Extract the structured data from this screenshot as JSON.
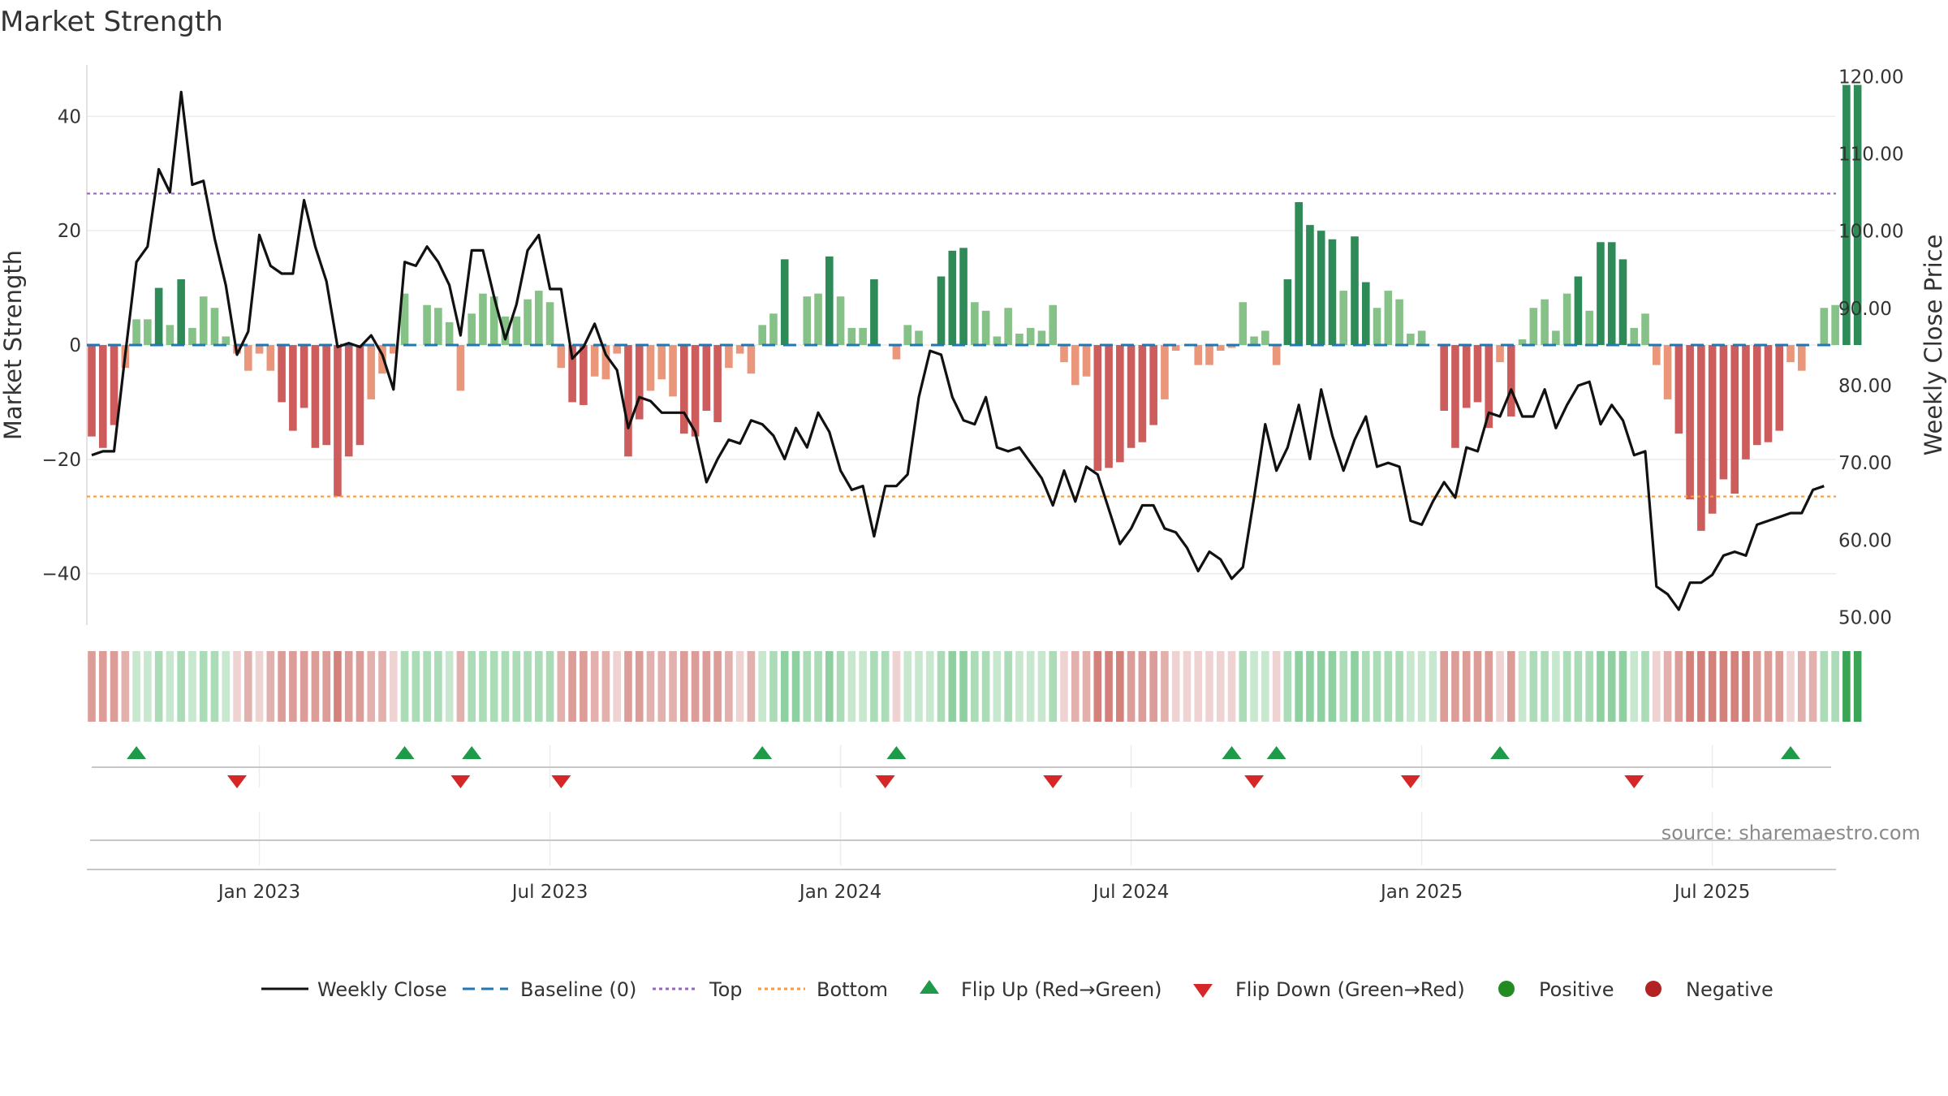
{
  "chart_data": {
    "type": "bar",
    "title": "Market Strength",
    "ylabel_left": "Market Strength",
    "ylabel_right": "Weekly Close Price",
    "ylim_left": [
      -49,
      49
    ],
    "ylim_right": [
      49,
      121.5
    ],
    "left_ticks": [
      {
        "value": 40,
        "label": "40"
      },
      {
        "value": 20,
        "label": "20"
      },
      {
        "value": 0,
        "label": "0"
      },
      {
        "value": -20,
        "label": "−20"
      },
      {
        "value": -40,
        "label": "−40"
      }
    ],
    "right_ticks": [
      {
        "value": 120,
        "label": "120.00"
      },
      {
        "value": 110,
        "label": "110.00"
      },
      {
        "value": 100,
        "label": "100.00"
      },
      {
        "value": 90,
        "label": "90.00"
      },
      {
        "value": 80,
        "label": "80.00"
      },
      {
        "value": 70,
        "label": "70.00"
      },
      {
        "value": 60,
        "label": "60.00"
      },
      {
        "value": 50,
        "label": "50.00"
      }
    ],
    "x_ticks": [
      {
        "week": 15,
        "label": "Jan 2023"
      },
      {
        "week": 41,
        "label": "Jul 2023"
      },
      {
        "week": 67,
        "label": "Jan 2024"
      },
      {
        "week": 93,
        "label": "Jul 2024"
      },
      {
        "week": 119,
        "label": "Jan 2025"
      },
      {
        "week": 145,
        "label": "Jul 2025"
      }
    ],
    "top_level": 26.5,
    "bottom_level": -26.5,
    "series": [
      {
        "name": "Market Strength",
        "values": [
          -16,
          -18,
          -14,
          -4,
          4.5,
          4.5,
          10,
          3.5,
          11.5,
          3,
          8.5,
          6.5,
          1.5,
          -1.5,
          -4.5,
          -1.5,
          -4.5,
          -10,
          -15,
          -11,
          -18,
          -17.5,
          -26.5,
          -19.5,
          -17.5,
          -9.5,
          -5,
          -1.5,
          9,
          0,
          7,
          6.5,
          4,
          -8,
          5.5,
          9,
          8.5,
          5,
          5,
          8,
          9.5,
          7.5,
          -4,
          -10,
          -10.5,
          -5.5,
          -6,
          -1.5,
          -19.5,
          -13,
          -8,
          -6,
          -9,
          -15.5,
          -16,
          -11.5,
          -13.5,
          -4,
          -1.5,
          -5,
          3.5,
          5.5,
          15,
          0,
          8.5,
          9,
          15.5,
          8.5,
          3,
          3,
          11.5,
          0,
          -2.5,
          3.5,
          2.5,
          0,
          12,
          16.5,
          17,
          7.5,
          6,
          1.5,
          6.5,
          2,
          3,
          2.5,
          7,
          -3,
          -7,
          -5.5,
          -22,
          -21.5,
          -20.5,
          -18,
          -17,
          -14,
          -9.5,
          -1,
          0,
          -3.5,
          -3.5,
          -1,
          -0.5,
          7.5,
          1.5,
          2.5,
          -3.5,
          11.5,
          25,
          21,
          20,
          18.5,
          9.5,
          19,
          11,
          6.5,
          9.5,
          8,
          2,
          2.5,
          0,
          -11.5,
          -18,
          -11,
          -10,
          -14.5,
          -3,
          -12.5,
          1,
          6.5,
          8,
          2.5,
          9,
          12,
          6,
          18,
          18,
          15,
          3,
          5.5,
          -3.5,
          -9.5,
          -15.5,
          -27,
          -32.5,
          -29.5,
          -23.5,
          -26,
          -20,
          -17.5,
          -17,
          -15,
          -3,
          -4.5,
          0,
          6.5,
          7,
          45.5,
          45.5
        ]
      },
      {
        "name": "Weekly Close",
        "values": [
          71,
          71.5,
          71.5,
          84,
          96,
          98,
          108,
          105,
          118,
          106,
          106.5,
          99,
          93,
          84,
          87,
          99.5,
          95.5,
          94.5,
          94.5,
          104,
          98,
          93.5,
          85,
          85.5,
          85,
          86.5,
          84,
          79.5,
          96,
          95.5,
          98,
          96,
          93,
          86.5,
          97.5,
          97.5,
          91.5,
          86,
          90.5,
          97.5,
          99.5,
          92.5,
          92.5,
          83.5,
          85,
          88,
          84,
          82,
          74.5,
          78.5,
          78,
          76.5,
          76.5,
          76.5,
          74,
          67.5,
          70.5,
          73,
          72.5,
          75.5,
          75,
          73.5,
          70.5,
          74.5,
          72,
          76.5,
          74,
          69,
          66.5,
          67,
          60.5,
          67,
          67,
          68.5,
          78.5,
          84.5,
          84,
          78.5,
          75.5,
          75,
          78.5,
          72,
          71.5,
          72,
          70,
          68,
          64.5,
          69,
          65,
          69.5,
          68.5,
          64,
          59.5,
          61.5,
          64.5,
          64.5,
          61.5,
          61,
          59,
          56,
          58.5,
          57.5,
          55,
          56.5,
          65.5,
          75,
          69,
          72,
          77.5,
          70.5,
          79.5,
          73.5,
          69,
          73,
          76,
          69.5,
          70,
          69.5,
          62.5,
          62,
          65,
          67.5,
          65.5,
          72,
          71.5,
          76.5,
          76,
          79.5,
          76,
          76,
          79.5,
          74.5,
          77.5,
          80,
          80.5,
          75,
          77.5,
          75.5,
          71,
          71.5,
          54,
          53,
          51,
          54.5,
          54.5,
          55.5,
          58,
          58.5,
          58,
          62,
          62.5,
          63,
          63.5,
          63.5,
          66.5,
          67
        ]
      }
    ],
    "flip_up_weeks": [
      4,
      28,
      34,
      60,
      72,
      102,
      106,
      126,
      152
    ],
    "flip_down_weeks": [
      13,
      33,
      42,
      71,
      86,
      104,
      118,
      138
    ]
  },
  "source_text": "source: sharemaestro.com",
  "legend": [
    {
      "key": "weekly_close",
      "label": "Weekly Close"
    },
    {
      "key": "baseline",
      "label": "Baseline (0)"
    },
    {
      "key": "top",
      "label": "Top"
    },
    {
      "key": "bottom",
      "label": "Bottom"
    },
    {
      "key": "flip_up",
      "label": "Flip Up (Red→Green)"
    },
    {
      "key": "flip_down",
      "label": "Flip Down (Green→Red)"
    },
    {
      "key": "positive",
      "label": "Positive"
    },
    {
      "key": "negative",
      "label": "Negative"
    }
  ],
  "colors": {
    "pos_strong": "#2e8b57",
    "pos_weak": "#86c287",
    "neg_strong": "#cd5c5c",
    "neg_weak": "#e9967a",
    "price_line": "#111111",
    "baseline": "#1f77b4",
    "top": "#9467bd",
    "bottom": "#ff9933",
    "flip_up": "#1e9b48",
    "flip_down": "#d62728",
    "positive_dot": "#228b22",
    "negative_dot": "#b22222"
  }
}
